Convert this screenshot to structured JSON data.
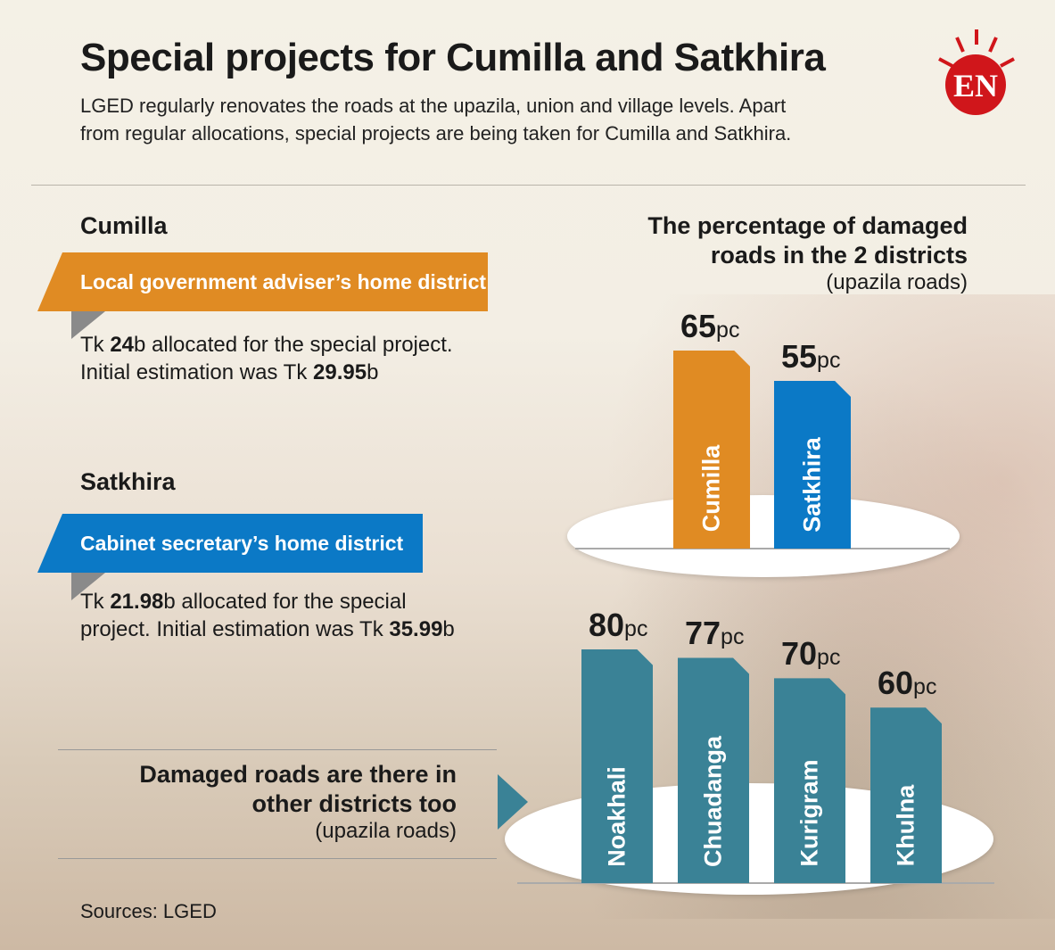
{
  "header": {
    "title": "Special projects for Cumilla and Satkhira",
    "subtitle": "LGED regularly renovates the roads at the upazila, union and village levels. Apart from regular allocations, special projects are being taken for Cumilla and Satkhira.",
    "logo_text": "EN",
    "logo_color": "#d0161b"
  },
  "cumilla": {
    "heading": "Cumilla",
    "banner": "Local government adviser’s home district",
    "banner_color": "#e08b23",
    "t1": "Tk ",
    "b1": "24",
    "t2": "b allocated for the special project. Initial estimation was Tk ",
    "b2": "29.95",
    "t3": "b"
  },
  "satkhira": {
    "heading": "Satkhira",
    "banner": "Cabinet secretary’s home district",
    "banner_color": "#0b79c6",
    "t1": "Tk ",
    "b1": "21.98",
    "t2": "b allocated for the special project. Initial estimation was Tk ",
    "b2": "35.99",
    "t3": "b"
  },
  "other": {
    "title": "Damaged roads are there in other districts too",
    "subtitle": "(upazila roads)"
  },
  "sources": "Sources: LGED",
  "chart_data": [
    {
      "type": "bar",
      "title": "The percentage of damaged roads in the 2 districts",
      "subtitle": "(upazila roads)",
      "unit": "pc",
      "categories": [
        "Cumilla",
        "Satkhira"
      ],
      "values": [
        65,
        55
      ],
      "colors": [
        "#e08b23",
        "#0b79c6"
      ]
    },
    {
      "type": "bar",
      "title": "Damaged roads are there in other districts too",
      "subtitle": "(upazila roads)",
      "unit": "pc",
      "categories": [
        "Noakhali",
        "Chuadanga",
        "Kurigram",
        "Khulna"
      ],
      "values": [
        80,
        77,
        70,
        60
      ],
      "colors": [
        "#3a8296",
        "#3a8296",
        "#3a8296",
        "#3a8296"
      ]
    }
  ]
}
